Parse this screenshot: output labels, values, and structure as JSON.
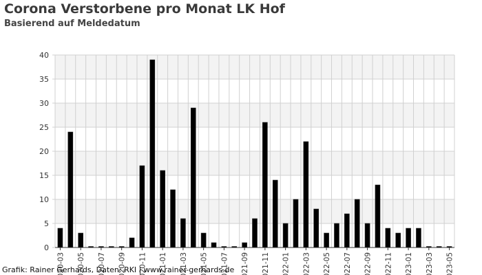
{
  "title": "Corona Verstorbene pro Monat LK Hof",
  "subtitle": "Basierend auf Meldedatum",
  "source": "Grafik: Rainer Gerhards, Daten: RKI | www.rainer-gerhards.de",
  "colors": {
    "bar": "#000000",
    "band": "#f3f3f3",
    "grid": "#d0d0d0",
    "axis": "#333333"
  },
  "chart_data": {
    "type": "bar",
    "title": "Corona Verstorbene pro Monat LK Hof",
    "subtitle": "Basierend auf Meldedatum",
    "xlabel": "",
    "ylabel": "",
    "ylim": [
      0,
      40
    ],
    "yticks": [
      0,
      5,
      10,
      15,
      20,
      25,
      30,
      35,
      40
    ],
    "grid": true,
    "categories": [
      "2020-03",
      "2020-04",
      "2020-05",
      "2020-06",
      "2020-07",
      "2020-08",
      "2020-09",
      "2020-10",
      "2020-11",
      "2020-12",
      "2021-01",
      "2021-02",
      "2021-03",
      "2021-04",
      "2021-05",
      "2021-06",
      "2021-07",
      "2021-08",
      "2021-09",
      "2021-10",
      "2021-11",
      "2021-12",
      "2022-01",
      "2022-02",
      "2022-03",
      "2022-04",
      "2022-05",
      "2022-06",
      "2022-07",
      "2022-08",
      "2022-09",
      "2022-10",
      "2022-11",
      "2022-12",
      "2023-01",
      "2023-02",
      "2023-03",
      "2023-04",
      "2023-05"
    ],
    "values": [
      4,
      24,
      3,
      0,
      0,
      0,
      0,
      2,
      17,
      39,
      16,
      12,
      6,
      29,
      3,
      1,
      0,
      0,
      1,
      6,
      26,
      14,
      5,
      10,
      22,
      8,
      3,
      5,
      7,
      10,
      5,
      13,
      4,
      3,
      4,
      4,
      0,
      0,
      0
    ],
    "xtick_labels": [
      {
        "index": 0,
        "label": "2020-03"
      },
      {
        "index": 2,
        "label": "2020-05"
      },
      {
        "index": 4,
        "label": "2020-07"
      },
      {
        "index": 6,
        "label": "2020-09"
      },
      {
        "index": 8,
        "label": "2020-11"
      },
      {
        "index": 10,
        "label": "2021-01"
      },
      {
        "index": 12,
        "label": "2021-03"
      },
      {
        "index": 14,
        "label": "2021-05"
      },
      {
        "index": 16,
        "label": "2021-07"
      },
      {
        "index": 18,
        "label": "2021-09"
      },
      {
        "index": 20,
        "label": "2021-11"
      },
      {
        "index": 22,
        "label": "2022-01"
      },
      {
        "index": 24,
        "label": "2022-03"
      },
      {
        "index": 26,
        "label": "2022-05"
      },
      {
        "index": 28,
        "label": "2022-07"
      },
      {
        "index": 30,
        "label": "2022-09"
      },
      {
        "index": 32,
        "label": "2022-11"
      },
      {
        "index": 34,
        "label": "2023-01"
      },
      {
        "index": 36,
        "label": "2023-03"
      },
      {
        "index": 38,
        "label": "2023-05"
      }
    ]
  }
}
